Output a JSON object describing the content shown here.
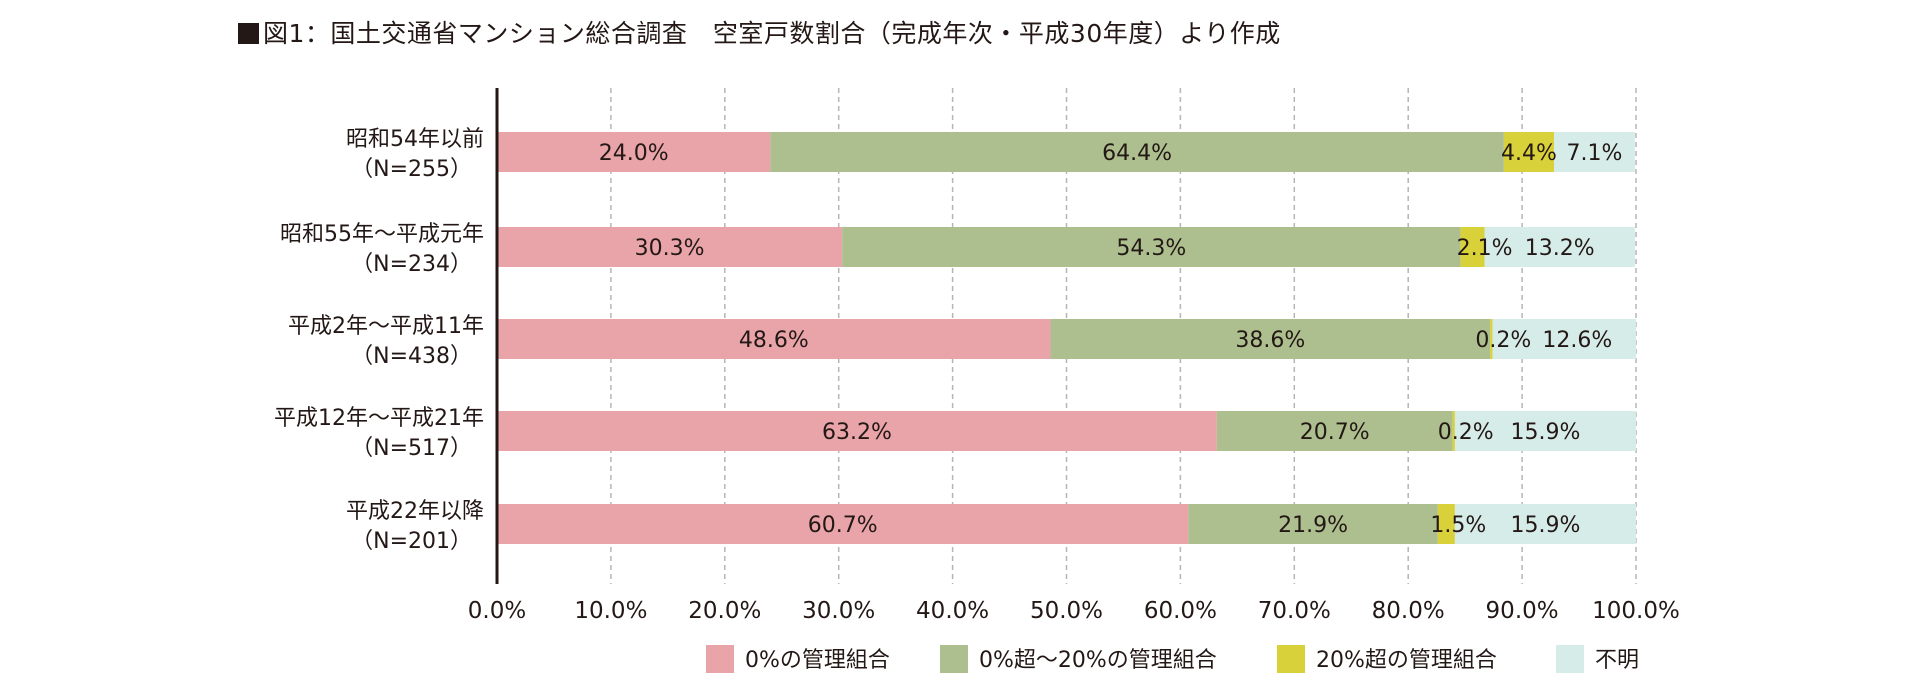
{
  "title": "図1：国土交通省マンション総合調査　空室戸数割合（完成年次・平成30年度）より作成",
  "colors": {
    "s0": "#e8a4a8",
    "s1": "#adbf8f",
    "s2": "#d9d13a",
    "s3": "#d6ece9",
    "axis": "#231815",
    "grid": "#b5b5b5"
  },
  "chart_data": {
    "type": "bar",
    "orientation": "horizontal",
    "stacked": true,
    "title": "図1：国土交通省マンション総合調査　空室戸数割合（完成年次・平成30年度）より作成",
    "categories": [
      {
        "line1": "昭和54年以前",
        "line2": "（N=255）"
      },
      {
        "line1": "昭和55年～平成元年",
        "line2": "（N=234）"
      },
      {
        "line1": "平成2年～平成11年",
        "line2": "（N=438）"
      },
      {
        "line1": "平成12年～平成21年",
        "line2": "（N=517）"
      },
      {
        "line1": "平成22年以降",
        "line2": "（N=201）"
      }
    ],
    "series": [
      {
        "name": "0%の管理組合",
        "values": [
          24.0,
          30.3,
          48.6,
          63.2,
          60.7
        ],
        "labels": [
          "24.0%",
          "30.3%",
          "48.6%",
          "63.2%",
          "60.7%"
        ]
      },
      {
        "name": "0%超～20%の管理組合",
        "values": [
          64.4,
          54.3,
          38.6,
          20.7,
          21.9
        ],
        "labels": [
          "64.4%",
          "54.3%",
          "38.6%",
          "20.7%",
          "21.9%"
        ]
      },
      {
        "name": "20%超の管理組合",
        "values": [
          4.4,
          2.1,
          0.2,
          0.2,
          1.5
        ],
        "labels": [
          "4.4%",
          "2.1%",
          "0.2%",
          "0.2%",
          "1.5%"
        ]
      },
      {
        "name": "不明",
        "values": [
          7.1,
          13.2,
          12.6,
          15.9,
          15.9
        ],
        "labels": [
          "7.1%",
          "13.2%",
          "12.6%",
          "15.9%",
          "15.9%"
        ]
      }
    ],
    "xlim": [
      0,
      100
    ],
    "xticks": [
      "0.0%",
      "10.0%",
      "20.0%",
      "30.0%",
      "40.0%",
      "50.0%",
      "60.0%",
      "70.0%",
      "80.0%",
      "90.0%",
      "100.0%"
    ],
    "grid": true,
    "legend": "bottom"
  }
}
